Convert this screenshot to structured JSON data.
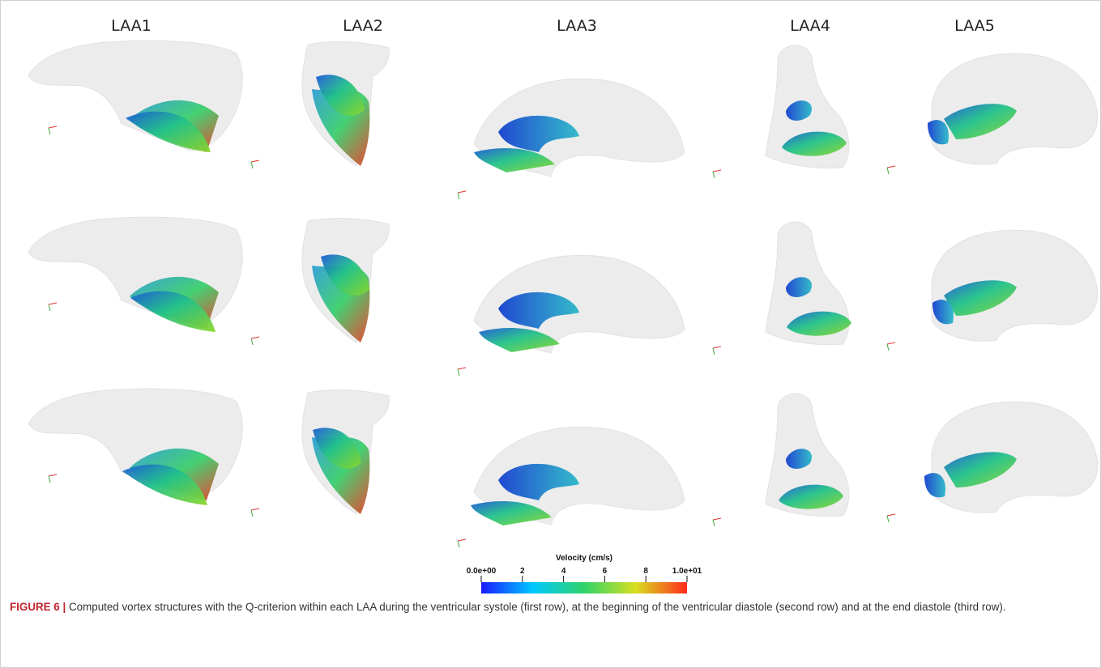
{
  "figure": {
    "columns": [
      "LAA1",
      "LAA2",
      "LAA3",
      "LAA4",
      "LAA5"
    ],
    "colorbar": {
      "title": "Velocity (cm/s)",
      "range": [
        0,
        10
      ],
      "ticks": [
        {
          "value": 0,
          "label": "0.0e+00"
        },
        2,
        4,
        6,
        8,
        {
          "value": 10,
          "label": "1.0e+01"
        }
      ],
      "colors": [
        "#1a1aff",
        "#00c8ff",
        "#2fd36a",
        "#d8e020",
        "#ff2a1a"
      ]
    },
    "caption": {
      "label": "FIGURE 6 |",
      "text": "Computed vortex structures with the Q-criterion within each LAA during the ventricular systole (first row), at the beginning of the ventricular diastole (second row) and at the end diastole (third row)."
    }
  }
}
